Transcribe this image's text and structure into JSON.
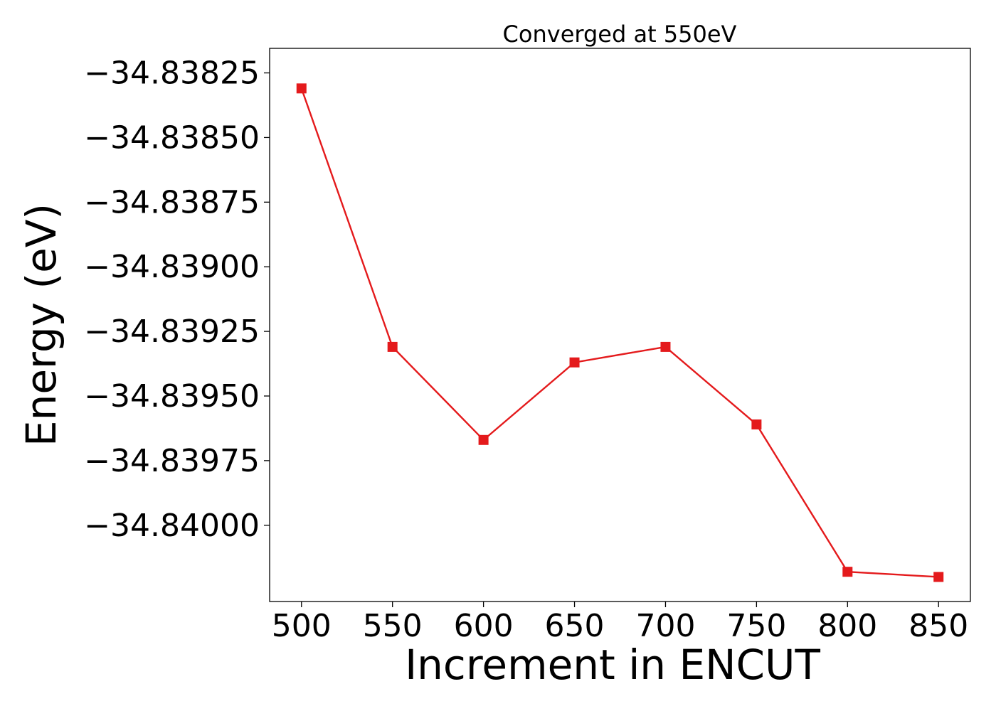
{
  "chart_data": {
    "type": "line",
    "title": "Converged at 550eV",
    "xlabel": "Increment in ENCUT",
    "ylabel": "Energy (eV)",
    "x": [
      500,
      550,
      600,
      650,
      700,
      750,
      800,
      850
    ],
    "series": [
      {
        "values": [
          -34.83831,
          -34.83931,
          -34.83967,
          -34.83937,
          -34.83931,
          -34.83961,
          -34.84018,
          -34.8402
        ],
        "color": "#e41a1c",
        "marker": "square"
      }
    ],
    "xticks": [
      500,
      550,
      600,
      650,
      700,
      750,
      800,
      850
    ],
    "xtick_labels": [
      "500",
      "550",
      "600",
      "650",
      "700",
      "750",
      "800",
      "850"
    ],
    "yticks": [
      -34.83825,
      -34.8385,
      -34.83875,
      -34.839,
      -34.83925,
      -34.8395,
      -34.83975,
      -34.84
    ],
    "ytick_labels": [
      "−34.83825",
      "−34.83850",
      "−34.83875",
      "−34.83900",
      "−34.83925",
      "−34.83950",
      "−34.83975",
      "−34.84000"
    ],
    "xlim": [
      482.5,
      867.5
    ],
    "ylim": [
      -34.840295,
      -34.838155
    ],
    "grid": false,
    "legend": "none"
  }
}
